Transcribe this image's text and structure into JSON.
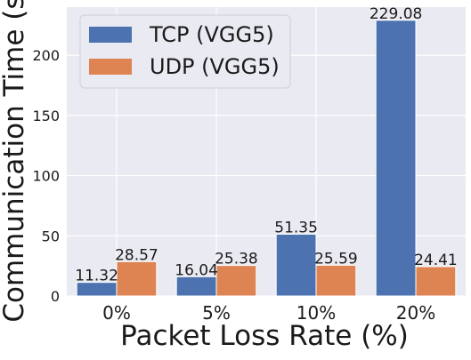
{
  "chart_data": {
    "type": "bar",
    "categories": [
      "0%",
      "5%",
      "10%",
      "20%"
    ],
    "series": [
      {
        "name": "TCP (VGG5)",
        "values": [
          11.32,
          16.04,
          51.35,
          229.08
        ],
        "labels": [
          "11.32",
          "16.04",
          "51.35",
          "229.08"
        ],
        "color": "#4c72b0"
      },
      {
        "name": "UDP (VGG5)",
        "values": [
          28.57,
          25.38,
          25.59,
          24.41
        ],
        "labels": [
          "28.57",
          "25.38",
          "25.59",
          "24.41"
        ],
        "color": "#dd8452"
      }
    ],
    "xlabel": "Packet Loss Rate (%)",
    "ylabel": "Communication Time (s)",
    "ylim": [
      0,
      240
    ],
    "yticks": [
      0,
      50,
      100,
      150,
      200
    ],
    "grid": true,
    "legend_position": "top-left",
    "plot_background": "#eaeaf2",
    "grid_color": "#ffffff"
  }
}
